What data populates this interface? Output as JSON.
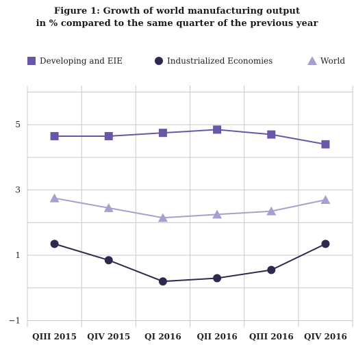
{
  "chart_data": {
    "type": "line",
    "title": "Figure 1: Growth of world manufacturing output",
    "subtitle": "in % compared to the same quarter of the previous year",
    "xlabel": "",
    "ylabel": "",
    "categories": [
      "QIII 2015",
      "QIV 2015",
      "QI 2016",
      "QII 2016",
      "QIII 2016",
      "QIV 2016"
    ],
    "ylim": [
      -1.2,
      6.2
    ],
    "yticks": [
      -1,
      1,
      3,
      5
    ],
    "ytick_labels": [
      "−1",
      "1",
      "3",
      "5"
    ],
    "grid": "vertical and horizontal",
    "legend_position": "top",
    "series": [
      {
        "name": "Developing and EIE",
        "marker": "square",
        "color": "#6a56a8",
        "values": [
          4.65,
          4.65,
          4.75,
          4.85,
          4.7,
          4.4
        ]
      },
      {
        "name": "Industrialized Economies",
        "marker": "circle",
        "color": "#2e2a4f",
        "values": [
          1.35,
          0.85,
          0.2,
          0.3,
          0.55,
          1.35
        ]
      },
      {
        "name": "World",
        "marker": "triangle",
        "color": "#a79fcf",
        "values": [
          2.75,
          2.45,
          2.15,
          2.25,
          2.35,
          2.7
        ]
      }
    ]
  }
}
